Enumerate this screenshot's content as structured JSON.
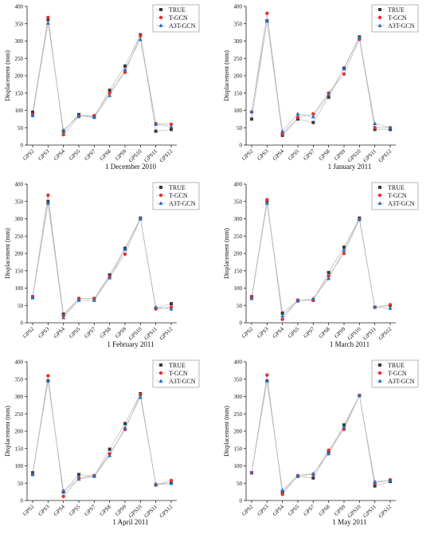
{
  "legend": [
    {
      "name": "TRUE",
      "color": "#3a3a3a",
      "marker": "square"
    },
    {
      "name": "T-GCN",
      "color": "#e8302a",
      "marker": "circle"
    },
    {
      "name": "A3T-GCN",
      "color": "#1f6fd1",
      "marker": "triangle"
    }
  ],
  "chart_data": [
    {
      "type": "line",
      "title": "1 December 2010",
      "ylabel": "Displacement (mm)",
      "categories": [
        "GPS2",
        "GPS3",
        "GPS4",
        "GPS5",
        "GPS7",
        "GPS8",
        "GPS9",
        "GPS10",
        "GPS11",
        "GPS12"
      ],
      "ylim": [
        0,
        400
      ],
      "yticks": [
        0,
        50,
        100,
        150,
        200,
        250,
        300,
        350,
        400
      ],
      "grid": false,
      "legend_position": "top-right",
      "series": [
        {
          "name": "TRUE",
          "values": [
            95,
            362,
            40,
            88,
            82,
            158,
            228,
            318,
            40,
            45
          ]
        },
        {
          "name": "T-GCN",
          "values": [
            88,
            368,
            30,
            82,
            85,
            150,
            210,
            315,
            62,
            60
          ]
        },
        {
          "name": "A3T-GCN",
          "values": [
            85,
            352,
            43,
            84,
            80,
            143,
            218,
            305,
            60,
            53
          ]
        }
      ]
    },
    {
      "type": "line",
      "title": "1 January 2011",
      "ylabel": "Displacement (mm)",
      "categories": [
        "GPS2",
        "GPS3",
        "GPS4",
        "GPS5",
        "GPS7",
        "GPS8",
        "GPS9",
        "GPS10",
        "GPS11",
        "GPS12"
      ],
      "ylim": [
        0,
        400
      ],
      "yticks": [
        0,
        50,
        100,
        150,
        200,
        250,
        300,
        350,
        400
      ],
      "grid": false,
      "legend_position": "top-right",
      "series": [
        {
          "name": "TRUE",
          "values": [
            75,
            358,
            28,
            75,
            65,
            138,
            222,
            312,
            45,
            45
          ]
        },
        {
          "name": "T-GCN",
          "values": [
            95,
            380,
            32,
            80,
            90,
            150,
            205,
            305,
            50,
            50
          ]
        },
        {
          "name": "A3T-GCN",
          "values": [
            97,
            358,
            40,
            90,
            82,
            145,
            220,
            310,
            62,
            50
          ]
        }
      ]
    },
    {
      "type": "line",
      "title": "1 February 2011",
      "ylabel": "Displacement (mm)",
      "categories": [
        "GPS2",
        "GPS3",
        "GPS4",
        "GPS5",
        "GPS7",
        "GPS8",
        "GPS9",
        "GPS10",
        "GPS11",
        "GPS12"
      ],
      "ylim": [
        0,
        400
      ],
      "yticks": [
        0,
        50,
        100,
        150,
        200,
        250,
        300,
        350,
        400
      ],
      "grid": false,
      "legend_position": "top-right",
      "series": [
        {
          "name": "TRUE",
          "values": [
            75,
            350,
            25,
            70,
            70,
            138,
            215,
            302,
            42,
            55
          ]
        },
        {
          "name": "T-GCN",
          "values": [
            75,
            368,
            20,
            70,
            70,
            132,
            198,
            300,
            40,
            45
          ]
        },
        {
          "name": "A3T-GCN",
          "values": [
            72,
            345,
            15,
            65,
            65,
            130,
            212,
            300,
            45,
            40
          ]
        }
      ]
    },
    {
      "type": "line",
      "title": "1 March 2011",
      "ylabel": "Displacement (mm)",
      "categories": [
        "GPS2",
        "GPS3",
        "GPS4",
        "GPS5",
        "GPS7",
        "GPS8",
        "GPS9",
        "GPS10",
        "GPS11",
        "GPS12"
      ],
      "ylim": [
        0,
        400
      ],
      "yticks": [
        0,
        50,
        100,
        150,
        200,
        250,
        300,
        350,
        400
      ],
      "grid": false,
      "legend_position": "top-right",
      "series": [
        {
          "name": "TRUE",
          "values": [
            75,
            350,
            28,
            65,
            65,
            145,
            218,
            302,
            45,
            50
          ]
        },
        {
          "name": "T-GCN",
          "values": [
            72,
            355,
            10,
            65,
            65,
            135,
            200,
            298,
            45,
            52
          ]
        },
        {
          "name": "A3T-GCN",
          "values": [
            70,
            345,
            20,
            63,
            70,
            128,
            210,
            298,
            45,
            42
          ]
        }
      ]
    },
    {
      "type": "line",
      "title": "1 April 2011",
      "ylabel": "Displacement (mm)",
      "categories": [
        "GPS2",
        "GPS3",
        "GPS4",
        "GPS5",
        "GPS7",
        "GPS8",
        "GPS9",
        "GPS10",
        "GPS11",
        "GPS12"
      ],
      "ylim": [
        0,
        400
      ],
      "yticks": [
        0,
        50,
        100,
        150,
        200,
        250,
        300,
        350,
        400
      ],
      "grid": false,
      "legend_position": "top-right",
      "series": [
        {
          "name": "TRUE",
          "values": [
            80,
            345,
            25,
            75,
            70,
            148,
            222,
            308,
            45,
            50
          ]
        },
        {
          "name": "T-GCN",
          "values": [
            75,
            360,
            12,
            65,
            72,
            135,
            205,
            305,
            45,
            58
          ]
        },
        {
          "name": "A3T-GCN",
          "values": [
            75,
            345,
            28,
            62,
            70,
            130,
            210,
            298,
            48,
            50
          ]
        }
      ]
    },
    {
      "type": "line",
      "title": "1 May 2011",
      "ylabel": "Displacement (mm)",
      "categories": [
        "GPS2",
        "GPS3",
        "GPS4",
        "GPS5",
        "GPS7",
        "GPS8",
        "GPS9",
        "GPS10",
        "GPS11",
        "GPS12"
      ],
      "ylim": [
        0,
        400
      ],
      "yticks": [
        0,
        50,
        100,
        150,
        200,
        250,
        300,
        350,
        400
      ],
      "grid": false,
      "legend_position": "top-right",
      "series": [
        {
          "name": "TRUE",
          "values": [
            80,
            345,
            25,
            70,
            65,
            140,
            218,
            303,
            42,
            55
          ]
        },
        {
          "name": "T-GCN",
          "values": [
            80,
            362,
            18,
            72,
            75,
            145,
            205,
            303,
            50,
            60
          ]
        },
        {
          "name": "A3T-GCN",
          "values": [
            80,
            345,
            30,
            72,
            78,
            135,
            212,
            303,
            55,
            58
          ]
        }
      ]
    }
  ]
}
